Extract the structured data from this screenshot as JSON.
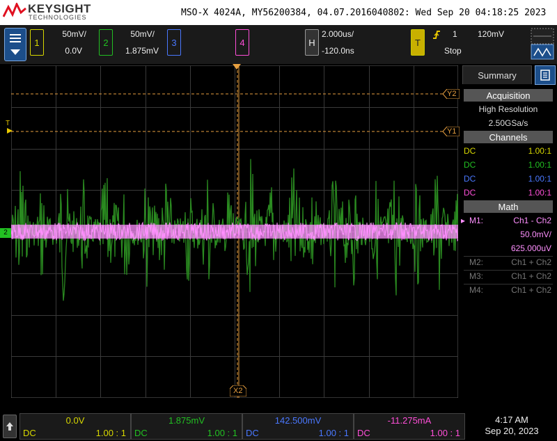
{
  "header": {
    "brand": "KEYSIGHT",
    "brand_sub": "TECHNOLOGIES",
    "title": "MSO-X 4024A, MY56200384, 04.07.2016040802: Wed Sep 20 04:18:25 2023"
  },
  "channels": [
    {
      "num": "1",
      "scale": "50mV/",
      "offset": "0.0V",
      "color": "#d8d800"
    },
    {
      "num": "2",
      "scale": "50mV/",
      "offset": "1.875mV",
      "color": "#22c022"
    },
    {
      "num": "3",
      "scale": "",
      "offset": "",
      "color": "#4a78ff"
    },
    {
      "num": "4",
      "scale": "",
      "offset": "",
      "color": "#ff4fd8"
    }
  ],
  "horizontal": {
    "label": "H",
    "timebase": "2.000us/",
    "delay": "-120.0ns"
  },
  "trigger": {
    "label": "T",
    "source": "1",
    "level": "120mV",
    "mode": "Stop",
    "slope_icon": "rising-edge-icon"
  },
  "markers": {
    "y1": "Y1",
    "y2": "Y2",
    "x2": "X2",
    "trig": "T",
    "ch2": "2"
  },
  "panel": {
    "tab": "Summary",
    "acquisition_head": "Acquisition",
    "acq_mode": "High Resolution",
    "acq_rate": "2.50GSa/s",
    "channels_head": "Channels",
    "channel_rows": [
      {
        "coupling": "DC",
        "ratio": "1.00:1",
        "color": "#d8d800"
      },
      {
        "coupling": "DC",
        "ratio": "1.00:1",
        "color": "#22c022"
      },
      {
        "coupling": "DC",
        "ratio": "1.00:1",
        "color": "#4a78ff"
      },
      {
        "coupling": "DC",
        "ratio": "1.00:1",
        "color": "#ff4fd8"
      }
    ],
    "math_head": "Math",
    "math_rows": [
      {
        "name": "M1:",
        "expr": "Ch1 - Ch2",
        "scale": "50.0mV/",
        "offset": "625.000uV"
      },
      {
        "name": "M2:",
        "expr": "Ch1 + Ch2"
      },
      {
        "name": "M3:",
        "expr": "Ch1 + Ch2"
      },
      {
        "name": "M4:",
        "expr": "Ch1 + Ch2"
      }
    ]
  },
  "bottom": {
    "cells": [
      {
        "value": "0.0V",
        "coupling": "DC",
        "ratio": "1.00 : 1",
        "color": "#d8d800"
      },
      {
        "value": "1.875mV",
        "coupling": "DC",
        "ratio": "1.00 : 1",
        "color": "#22c022"
      },
      {
        "value": "142.500mV",
        "coupling": "DC",
        "ratio": "1.00 : 1",
        "color": "#4a78ff"
      },
      {
        "value": "-11.275mA",
        "coupling": "DC",
        "ratio": "1.00 : 1",
        "color": "#ff4fd8"
      }
    ],
    "time": "4:17 AM",
    "date": "Sep 20, 2023"
  },
  "colors": {
    "ch1": "#d8d800",
    "ch2": "#22c022",
    "ch3": "#4a78ff",
    "ch4": "#ff4fd8",
    "math": "#ff90ff",
    "cursor": "#e8a040",
    "grid": "#555555"
  }
}
